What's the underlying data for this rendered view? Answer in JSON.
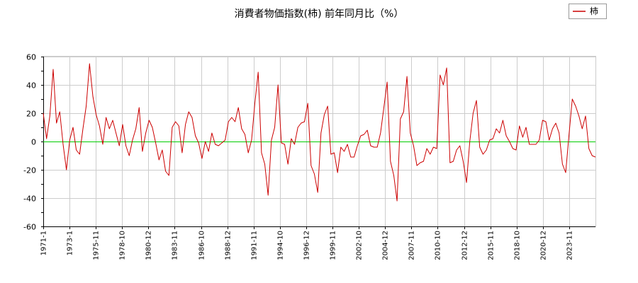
{
  "chart_data": {
    "type": "line",
    "title": "消費者物価指数(柿) 前年同月比（%）",
    "xlabel": "",
    "ylabel": "",
    "ylim": [
      -60,
      60
    ],
    "yticks": [
      -60,
      -40,
      -20,
      0,
      20,
      40,
      60
    ],
    "grid": true,
    "legend_position": "top-right",
    "x_tick_labels": [
      "1971-1",
      "1973-1",
      "1975-11",
      "1978-10",
      "1980-12",
      "1983-11",
      "1986-10",
      "1988-12",
      "1991-11",
      "1994-10",
      "1996-12",
      "1999-11",
      "2002-10",
      "2004-12",
      "2007-11",
      "2010-10",
      "2012-12",
      "2015-11",
      "2018-10",
      "2020-12",
      "2023-11"
    ],
    "series": [
      {
        "name": "柿",
        "color": "#cc0000",
        "values": [
          20,
          2,
          18,
          51,
          13,
          21,
          -2,
          -20,
          1,
          10,
          -6,
          -9,
          9,
          25,
          55,
          32,
          19,
          11,
          -2,
          17,
          9,
          15,
          6,
          -3,
          12,
          -3,
          -10,
          1,
          9,
          24,
          -7,
          6,
          15,
          10,
          -1,
          -13,
          -6,
          -21,
          -24,
          10,
          14,
          11,
          -8,
          12,
          21,
          17,
          4,
          -1,
          -12,
          0,
          -7,
          6,
          -2,
          -3,
          -1,
          1,
          14,
          17,
          14,
          24,
          9,
          5,
          -8,
          1,
          27,
          49,
          -8,
          -16,
          -38,
          1,
          10,
          40,
          -1,
          -2,
          -16,
          2,
          -2,
          10,
          13,
          14,
          27,
          -17,
          -23,
          -36,
          6,
          19,
          25,
          -9,
          -8,
          -22,
          -4,
          -7,
          -2,
          -11,
          -11,
          -3,
          4,
          5,
          8,
          -3,
          -4,
          -4,
          6,
          24,
          42,
          -14,
          -24,
          -42,
          16,
          21,
          46,
          6,
          -3,
          -17,
          -15,
          -14,
          -5,
          -9,
          -4,
          -5,
          47,
          40,
          52,
          -15,
          -14,
          -6,
          -3,
          -14,
          -29,
          0,
          20,
          29,
          -4,
          -9,
          -6,
          1,
          2,
          9,
          6,
          15,
          4,
          0,
          -5,
          -6,
          11,
          3,
          10,
          -2,
          -2,
          -2,
          1,
          15,
          14,
          1,
          9,
          13,
          6,
          -16,
          -22,
          5,
          30,
          25,
          18,
          9,
          18,
          -5,
          -10,
          -11
        ]
      }
    ]
  }
}
